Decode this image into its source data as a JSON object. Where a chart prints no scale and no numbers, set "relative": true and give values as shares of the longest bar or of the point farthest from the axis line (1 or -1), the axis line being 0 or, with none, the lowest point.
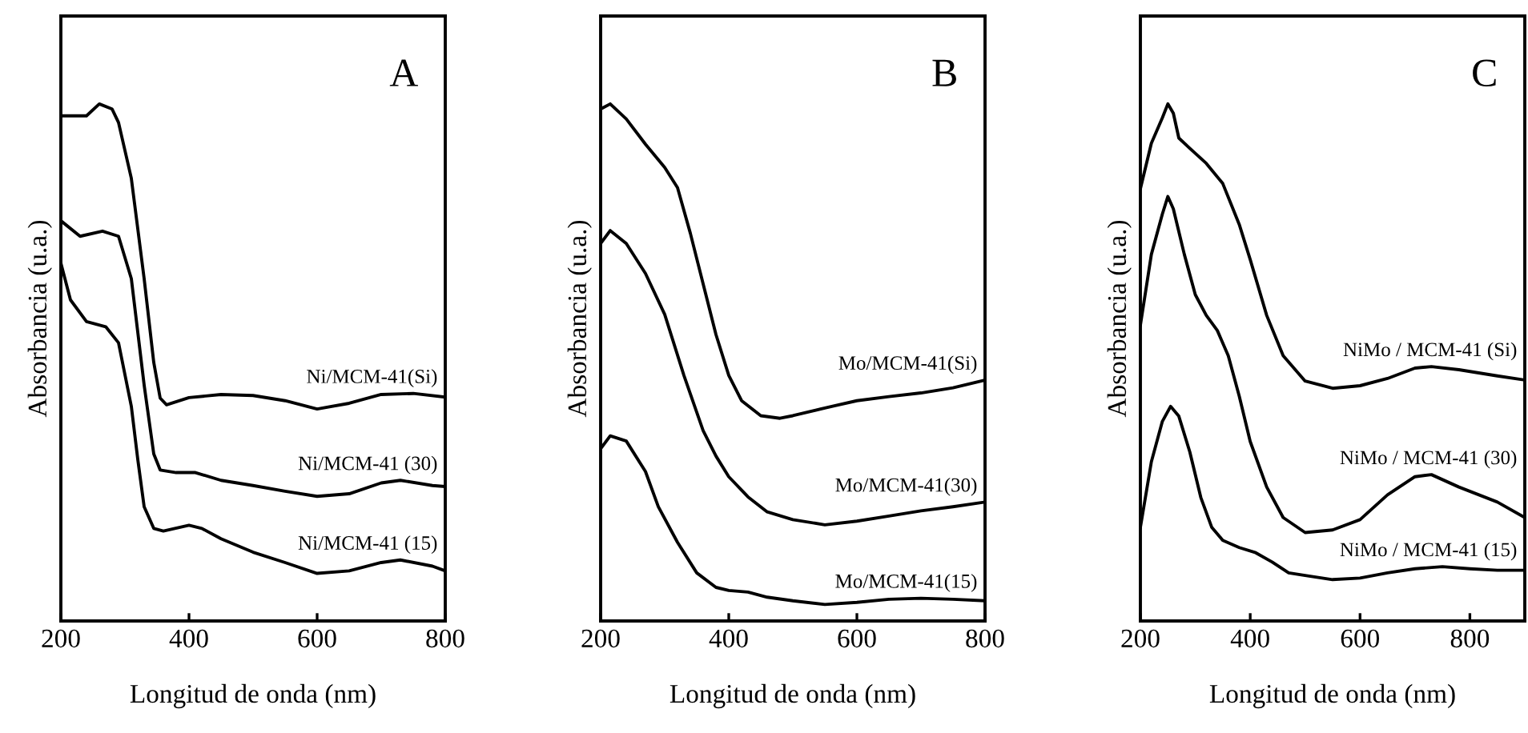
{
  "chart_data": [
    {
      "type": "line",
      "title": "A",
      "xlabel": "Longitud de onda (nm)",
      "ylabel": "Absorbancia (u.a.)",
      "relative": true,
      "xlim": [
        200,
        800
      ],
      "xticks": [
        200,
        400,
        600,
        800
      ],
      "tick_labels": "x",
      "grid": false,
      "legend": false,
      "marker": "none",
      "line_style": "solid",
      "series": [
        {
          "name": "Ni/MCM-41(Si)",
          "color": "#000000",
          "x": [
            200,
            240,
            260,
            280,
            290,
            310,
            330,
            345,
            355,
            365,
            400,
            450,
            500,
            550,
            600,
            650,
            700,
            750,
            800
          ],
          "values": [
            0.977,
            0.977,
            1.0,
            0.99,
            0.964,
            0.856,
            0.662,
            0.5,
            0.431,
            0.418,
            0.432,
            0.438,
            0.436,
            0.426,
            0.41,
            0.421,
            0.438,
            0.44,
            0.433
          ]
        },
        {
          "name": "Ni/MCM-41 (30)",
          "color": "#000000",
          "x": [
            200,
            230,
            265,
            290,
            310,
            330,
            345,
            355,
            380,
            410,
            450,
            500,
            550,
            600,
            650,
            700,
            730,
            780,
            800
          ],
          "values": [
            0.774,
            0.744,
            0.754,
            0.744,
            0.662,
            0.456,
            0.323,
            0.292,
            0.287,
            0.287,
            0.272,
            0.262,
            0.251,
            0.241,
            0.246,
            0.267,
            0.272,
            0.262,
            0.26
          ]
        },
        {
          "name": "Ni/MCM-41 (15)",
          "color": "#000000",
          "x": [
            200,
            215,
            240,
            270,
            290,
            310,
            320,
            330,
            345,
            360,
            400,
            420,
            450,
            500,
            550,
            600,
            650,
            700,
            730,
            780,
            800
          ],
          "values": [
            0.692,
            0.621,
            0.579,
            0.569,
            0.538,
            0.415,
            0.313,
            0.221,
            0.179,
            0.174,
            0.185,
            0.179,
            0.159,
            0.133,
            0.113,
            0.092,
            0.097,
            0.113,
            0.118,
            0.106,
            0.097
          ]
        }
      ]
    },
    {
      "type": "line",
      "title": "B",
      "xlabel": "Longitud de onda (nm)",
      "ylabel": "Absorbancia (u.a.)",
      "relative": true,
      "xlim": [
        200,
        800
      ],
      "xticks": [
        200,
        400,
        600,
        800
      ],
      "tick_labels": "x",
      "grid": false,
      "legend": false,
      "marker": "none",
      "line_style": "solid",
      "series": [
        {
          "name": "Mo/MCM-41(Si)",
          "color": "#000000",
          "x": [
            200,
            215,
            240,
            270,
            300,
            320,
            340,
            360,
            380,
            400,
            420,
            450,
            480,
            500,
            550,
            600,
            650,
            700,
            750,
            800
          ],
          "values": [
            0.99,
            1.0,
            0.971,
            0.922,
            0.877,
            0.838,
            0.75,
            0.652,
            0.554,
            0.475,
            0.426,
            0.397,
            0.392,
            0.397,
            0.412,
            0.426,
            0.434,
            0.441,
            0.451,
            0.466
          ]
        },
        {
          "name": "Mo/MCM-41(30)",
          "color": "#000000",
          "x": [
            200,
            215,
            240,
            270,
            300,
            330,
            360,
            380,
            400,
            430,
            460,
            500,
            550,
            600,
            650,
            700,
            750,
            800
          ],
          "values": [
            0.73,
            0.755,
            0.73,
            0.672,
            0.593,
            0.475,
            0.368,
            0.319,
            0.279,
            0.24,
            0.211,
            0.196,
            0.186,
            0.193,
            0.203,
            0.213,
            0.221,
            0.23
          ]
        },
        {
          "name": "Mo/MCM-41(15)",
          "color": "#000000",
          "x": [
            200,
            215,
            240,
            270,
            290,
            320,
            350,
            380,
            400,
            430,
            460,
            500,
            550,
            600,
            650,
            700,
            750,
            800
          ],
          "values": [
            0.333,
            0.358,
            0.348,
            0.289,
            0.221,
            0.152,
            0.093,
            0.065,
            0.059,
            0.056,
            0.046,
            0.039,
            0.032,
            0.036,
            0.042,
            0.044,
            0.042,
            0.039
          ]
        }
      ]
    },
    {
      "type": "line",
      "title": "C",
      "xlabel": "Longitud de onda (nm)",
      "ylabel": "Absorbancia (u.a.)",
      "relative": true,
      "xlim": [
        200,
        900
      ],
      "xticks": [
        200,
        400,
        600,
        800
      ],
      "tick_labels": "x",
      "grid": false,
      "legend": false,
      "marker": "none",
      "line_style": "solid",
      "series": [
        {
          "name": "NiMo / MCM-41 (Si)",
          "color": "#000000",
          "x": [
            200,
            220,
            240,
            250,
            260,
            270,
            290,
            320,
            350,
            380,
            400,
            430,
            460,
            500,
            550,
            600,
            650,
            700,
            730,
            780,
            850,
            900
          ],
          "values": [
            0.836,
            0.924,
            0.973,
            1.0,
            0.982,
            0.934,
            0.914,
            0.885,
            0.846,
            0.767,
            0.699,
            0.591,
            0.513,
            0.464,
            0.45,
            0.455,
            0.469,
            0.489,
            0.492,
            0.486,
            0.474,
            0.466
          ]
        },
        {
          "name": "NiMo / MCM-41 (30)",
          "color": "#000000",
          "x": [
            200,
            220,
            240,
            250,
            260,
            280,
            300,
            320,
            340,
            360,
            380,
            400,
            430,
            460,
            500,
            550,
            600,
            650,
            700,
            730,
            780,
            850,
            900
          ],
          "values": [
            0.572,
            0.709,
            0.787,
            0.821,
            0.797,
            0.709,
            0.631,
            0.591,
            0.562,
            0.513,
            0.435,
            0.347,
            0.259,
            0.2,
            0.171,
            0.176,
            0.196,
            0.244,
            0.279,
            0.283,
            0.259,
            0.23,
            0.2
          ]
        },
        {
          "name": "NiMo / MCM-41 (15)",
          "color": "#000000",
          "x": [
            200,
            220,
            240,
            255,
            270,
            290,
            310,
            330,
            350,
            380,
            410,
            440,
            470,
            500,
            550,
            600,
            650,
            700,
            750,
            800,
            850,
            900
          ],
          "values": [
            0.181,
            0.308,
            0.386,
            0.415,
            0.396,
            0.327,
            0.239,
            0.181,
            0.156,
            0.142,
            0.132,
            0.114,
            0.093,
            0.088,
            0.08,
            0.083,
            0.093,
            0.101,
            0.105,
            0.101,
            0.098,
            0.098
          ]
        }
      ]
    }
  ]
}
